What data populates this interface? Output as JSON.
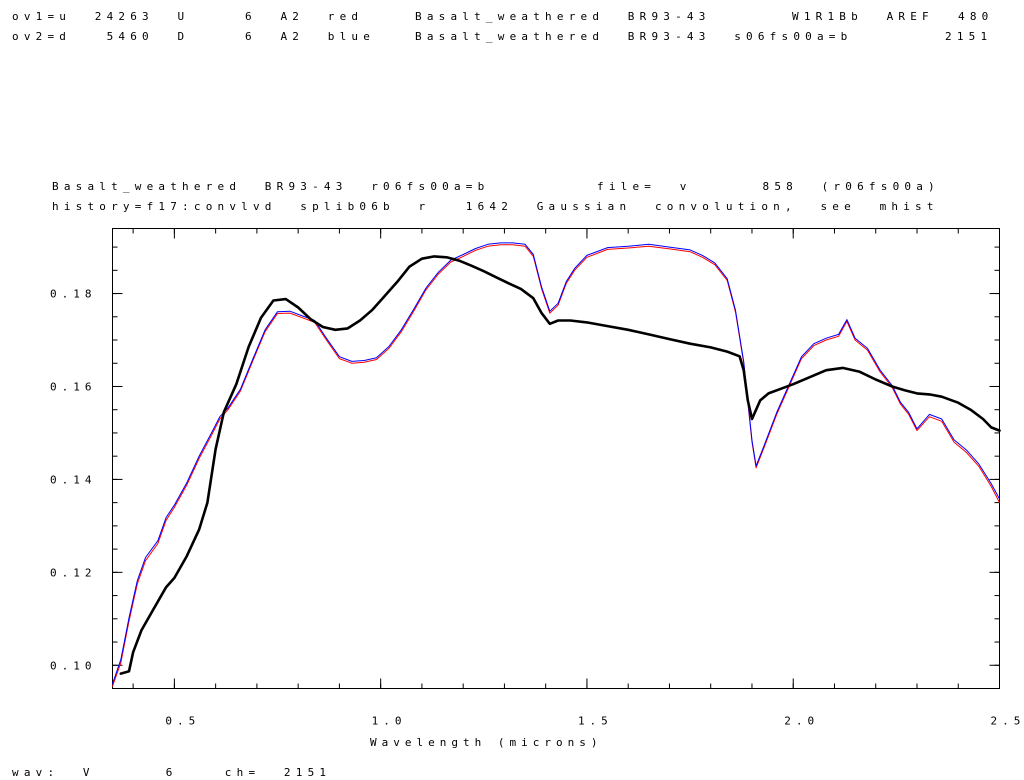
{
  "header": {
    "ov1": {
      "left": "ov1=u  24263  U",
      "ch": "6  A2  red",
      "title": "Basalt_weathered  BR93-43",
      "ref": "W1R1Bb  AREF",
      "num": "480"
    },
    "ov2": {
      "left": "ov2=d   5460  D",
      "ch": "6  A2  blue",
      "title": "Basalt_weathered  BR93-43  s06fs00a=b",
      "num": "2151"
    }
  },
  "plot_header": {
    "line1_left": "Basalt_weathered  BR93-43  r06fs00a=b",
    "line1_right": "file=  v      858  (r06fs00a)",
    "line2": "history=f17:convlvd  splib06b  r   1642  Gaussian  convolution,  see  mhist"
  },
  "footer": {
    "status": "wav:  V      6    ch=  2151"
  },
  "colors": {
    "main": "#000000",
    "overlay1": "#ff0000",
    "overlay2": "#0000ff"
  },
  "chart_data": {
    "type": "line",
    "xlabel": "Wavelength  (microns)",
    "ylabel": "",
    "xlim": [
      0.35,
      2.5
    ],
    "ylim": [
      0.095,
      0.194
    ],
    "x_ticks": [
      {
        "v": 0.5,
        "label": "0.5"
      },
      {
        "v": 1.0,
        "label": "1.0"
      },
      {
        "v": 1.5,
        "label": "1.5"
      },
      {
        "v": 2.0,
        "label": "2.0"
      },
      {
        "v": 2.5,
        "label": "2.5"
      }
    ],
    "y_ticks": [
      {
        "v": 0.1,
        "label": "0.10"
      },
      {
        "v": 0.12,
        "label": "0.12"
      },
      {
        "v": 0.14,
        "label": "0.14"
      },
      {
        "v": 0.16,
        "label": "0.16"
      },
      {
        "v": 0.18,
        "label": "0.18"
      }
    ],
    "x_minor_step": 0.1,
    "y_minor_step": 0.005,
    "series": [
      {
        "color": "#000000",
        "width": 2.6,
        "x": [
          0.37,
          0.39,
          0.4,
          0.42,
          0.45,
          0.48,
          0.5,
          0.53,
          0.56,
          0.58,
          0.6,
          0.62,
          0.65,
          0.68,
          0.71,
          0.74,
          0.77,
          0.8,
          0.83,
          0.86,
          0.89,
          0.92,
          0.95,
          0.98,
          1.01,
          1.04,
          1.07,
          1.1,
          1.13,
          1.16,
          1.19,
          1.22,
          1.25,
          1.28,
          1.31,
          1.34,
          1.37,
          1.39,
          1.41,
          1.43,
          1.46,
          1.5,
          1.55,
          1.6,
          1.65,
          1.7,
          1.75,
          1.8,
          1.84,
          1.87,
          1.88,
          1.89,
          1.9,
          1.91,
          1.92,
          1.94,
          1.97,
          2.0,
          2.04,
          2.08,
          2.12,
          2.16,
          2.2,
          2.24,
          2.27,
          2.3,
          2.33,
          2.36,
          2.4,
          2.43,
          2.46,
          2.48,
          2.5
        ],
        "y": [
          0.0982,
          0.0987,
          0.1028,
          0.1075,
          0.1122,
          0.1168,
          0.1188,
          0.1235,
          0.1292,
          0.135,
          0.1465,
          0.1545,
          0.1605,
          0.1685,
          0.1748,
          0.1785,
          0.1788,
          0.177,
          0.1745,
          0.1728,
          0.1722,
          0.1725,
          0.1742,
          0.1765,
          0.1795,
          0.1825,
          0.1858,
          0.1875,
          0.188,
          0.1878,
          0.1871,
          0.186,
          0.1848,
          0.1835,
          0.1822,
          0.181,
          0.179,
          0.1758,
          0.1735,
          0.1742,
          0.1742,
          0.1738,
          0.173,
          0.1722,
          0.1712,
          0.1702,
          0.1692,
          0.1684,
          0.1675,
          0.1665,
          0.1635,
          0.157,
          0.153,
          0.155,
          0.157,
          0.1585,
          0.1595,
          0.1605,
          0.162,
          0.1635,
          0.164,
          0.1632,
          0.1615,
          0.16,
          0.1592,
          0.1585,
          0.1583,
          0.1578,
          0.1565,
          0.155,
          0.153,
          0.1512,
          0.1505
        ]
      },
      {
        "color": "#ff0000",
        "width": 1,
        "x": [
          0.35,
          0.37,
          0.39,
          0.41,
          0.43,
          0.46,
          0.48,
          0.5,
          0.53,
          0.56,
          0.59,
          0.61,
          0.63,
          0.66,
          0.69,
          0.72,
          0.75,
          0.78,
          0.81,
          0.84,
          0.87,
          0.9,
          0.93,
          0.96,
          0.99,
          1.02,
          1.05,
          1.08,
          1.11,
          1.14,
          1.17,
          1.2,
          1.23,
          1.26,
          1.29,
          1.32,
          1.35,
          1.37,
          1.39,
          1.41,
          1.43,
          1.45,
          1.47,
          1.5,
          1.55,
          1.6,
          1.65,
          1.7,
          1.75,
          1.78,
          1.81,
          1.84,
          1.86,
          1.88,
          1.9,
          1.91,
          1.93,
          1.96,
          1.99,
          2.02,
          2.05,
          2.08,
          2.11,
          2.13,
          2.15,
          2.18,
          2.21,
          2.24,
          2.26,
          2.28,
          2.3,
          2.33,
          2.36,
          2.39,
          2.42,
          2.45,
          2.48,
          2.5
        ],
        "y": [
          0.0955,
          0.1005,
          0.1095,
          0.1175,
          0.1225,
          0.1262,
          0.1312,
          0.134,
          0.1388,
          0.1445,
          0.1495,
          0.153,
          0.155,
          0.159,
          0.1655,
          0.1718,
          0.1757,
          0.1758,
          0.1748,
          0.1738,
          0.1698,
          0.166,
          0.165,
          0.1652,
          0.1658,
          0.1682,
          0.1718,
          0.1762,
          0.1808,
          0.1842,
          0.1868,
          0.188,
          0.1893,
          0.1902,
          0.1905,
          0.1905,
          0.1902,
          0.188,
          0.181,
          0.1758,
          0.1775,
          0.1822,
          0.185,
          0.1878,
          0.1895,
          0.1898,
          0.1902,
          0.1896,
          0.189,
          0.1878,
          0.1862,
          0.1828,
          0.176,
          0.165,
          0.148,
          0.1425,
          0.147,
          0.154,
          0.16,
          0.166,
          0.1688,
          0.17,
          0.1708,
          0.174,
          0.17,
          0.1678,
          0.1632,
          0.1598,
          0.1562,
          0.154,
          0.1505,
          0.1535,
          0.1525,
          0.148,
          0.1458,
          0.1428,
          0.1385,
          0.135
        ]
      },
      {
        "color": "#0000ff",
        "width": 1,
        "x": [
          0.35,
          0.37,
          0.39,
          0.41,
          0.43,
          0.46,
          0.48,
          0.5,
          0.53,
          0.56,
          0.59,
          0.61,
          0.63,
          0.66,
          0.69,
          0.72,
          0.75,
          0.78,
          0.81,
          0.84,
          0.87,
          0.9,
          0.93,
          0.96,
          0.99,
          1.02,
          1.05,
          1.08,
          1.11,
          1.14,
          1.17,
          1.2,
          1.23,
          1.26,
          1.29,
          1.32,
          1.35,
          1.37,
          1.39,
          1.41,
          1.43,
          1.45,
          1.47,
          1.5,
          1.55,
          1.6,
          1.65,
          1.7,
          1.75,
          1.78,
          1.81,
          1.84,
          1.86,
          1.88,
          1.9,
          1.91,
          1.93,
          1.96,
          1.99,
          2.02,
          2.05,
          2.08,
          2.11,
          2.13,
          2.15,
          2.18,
          2.21,
          2.24,
          2.26,
          2.28,
          2.3,
          2.33,
          2.36,
          2.39,
          2.42,
          2.45,
          2.48,
          2.5
        ],
        "y": [
          0.096,
          0.1012,
          0.1102,
          0.1182,
          0.1232,
          0.1268,
          0.1318,
          0.1345,
          0.1393,
          0.145,
          0.15,
          0.1535,
          0.1554,
          0.1594,
          0.1659,
          0.1722,
          0.1761,
          0.1762,
          0.1752,
          0.1742,
          0.1702,
          0.1664,
          0.1654,
          0.1656,
          0.1662,
          0.1686,
          0.1722,
          0.1766,
          0.1812,
          0.1846,
          0.1872,
          0.1884,
          0.1897,
          0.1906,
          0.1909,
          0.1909,
          0.1906,
          0.1884,
          0.1814,
          0.1762,
          0.1779,
          0.1826,
          0.1854,
          0.1882,
          0.1899,
          0.1902,
          0.1906,
          0.19,
          0.1894,
          0.1882,
          0.1866,
          0.1832,
          0.1764,
          0.1654,
          0.1484,
          0.1429,
          0.1474,
          0.1544,
          0.1604,
          0.1664,
          0.1692,
          0.1704,
          0.1712,
          0.1744,
          0.1704,
          0.1682,
          0.1636,
          0.1602,
          0.1566,
          0.1544,
          0.1509,
          0.154,
          0.153,
          0.1485,
          0.1463,
          0.1433,
          0.1391,
          0.1358
        ]
      }
    ]
  }
}
